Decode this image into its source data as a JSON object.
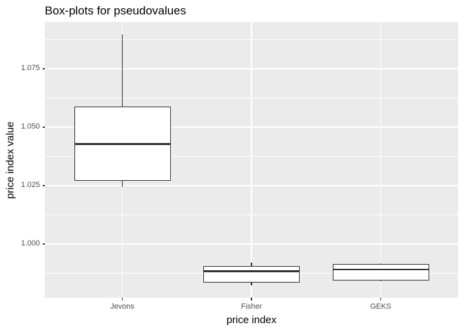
{
  "chart_data": {
    "type": "boxplot",
    "title": "Box-plots for pseudovalues",
    "xlabel": "price index",
    "ylabel": "price index value",
    "categories": [
      "Jevons",
      "Fisher",
      "GEKS"
    ],
    "series": [
      {
        "name": "Jevons",
        "whisker_low": 1.0244,
        "q1": 1.027,
        "median": 1.0428,
        "q3": 1.0589,
        "whisker_high": 1.0896
      },
      {
        "name": "Fisher",
        "whisker_low": 0.9824,
        "q1": 0.9836,
        "median": 0.9883,
        "q3": 0.9906,
        "whisker_high": 0.9921
      },
      {
        "name": "GEKS",
        "whisker_low": 0.984,
        "q1": 0.9843,
        "median": 0.9891,
        "q3": 0.9913,
        "whisker_high": 0.9918
      }
    ],
    "y_ticks": [
      {
        "value": 1.0,
        "label": "1.000"
      },
      {
        "value": 1.025,
        "label": "1.025"
      },
      {
        "value": 1.05,
        "label": "1.050"
      },
      {
        "value": 1.075,
        "label": "1.075"
      }
    ],
    "y_minor_ticks": [
      0.9875,
      1.0125,
      1.0375,
      1.0625,
      1.0875
    ],
    "ylim": [
      0.977,
      1.095
    ],
    "grid": true,
    "legend": "none",
    "colors": {
      "panel_bg": "#EBEBEB",
      "grid": "#FFFFFF",
      "box_border": "#333333",
      "box_fill": "#FFFFFF",
      "median": "#333333",
      "tick_mark": "#333333",
      "tick_label": "#4D4D4D",
      "title_text": "#000000"
    }
  }
}
